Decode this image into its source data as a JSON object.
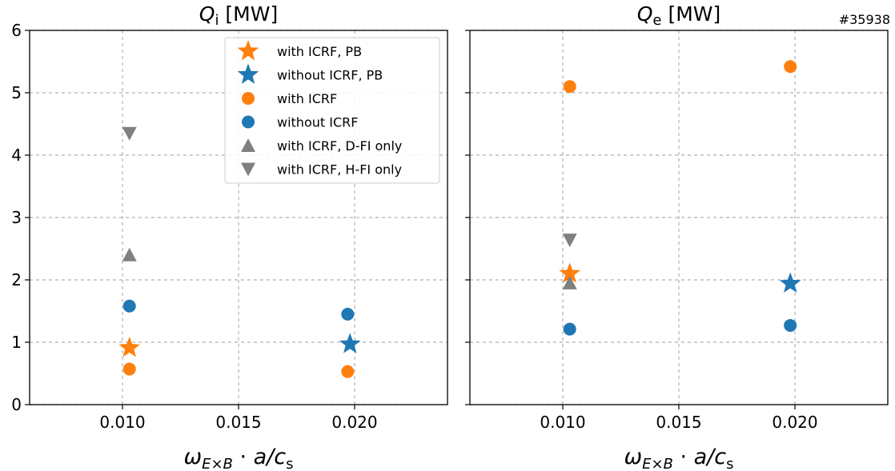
{
  "shot_label": "#35938",
  "x_label": "ωE×B · a/cs",
  "chart_data": [
    {
      "type": "scatter",
      "title": "Qi [MW]",
      "xlabel": "ωE×B · a/cs",
      "ylabel": "",
      "xlim": [
        0.006,
        0.024
      ],
      "ylim": [
        0,
        6
      ],
      "xticks": [
        "0.010",
        "0.015",
        "0.020"
      ],
      "yticks": [
        "0",
        "1",
        "2",
        "3",
        "4",
        "5",
        "6"
      ],
      "grid": true,
      "legend_position": "top-right",
      "series": [
        {
          "name": "with ICRF, PB",
          "marker": "star",
          "color": "#ff7f0e",
          "points": [
            {
              "x": 0.0103,
              "y": 0.91
            }
          ]
        },
        {
          "name": "without ICRF, PB",
          "marker": "star",
          "color": "#1f77b4",
          "points": [
            {
              "x": 0.0198,
              "y": 0.97
            }
          ]
        },
        {
          "name": "with ICRF",
          "marker": "circle",
          "color": "#ff7f0e",
          "points": [
            {
              "x": 0.0103,
              "y": 0.57
            },
            {
              "x": 0.0197,
              "y": 0.53
            }
          ]
        },
        {
          "name": "without ICRF",
          "marker": "circle",
          "color": "#1f77b4",
          "points": [
            {
              "x": 0.0103,
              "y": 1.58
            },
            {
              "x": 0.0197,
              "y": 1.45
            }
          ]
        },
        {
          "name": "with ICRF, D-FI only",
          "marker": "triangle-up",
          "color": "#808080",
          "points": [
            {
              "x": 0.0103,
              "y": 2.4
            }
          ]
        },
        {
          "name": "with ICRF, H-FI only",
          "marker": "triangle-down",
          "color": "#808080",
          "points": [
            {
              "x": 0.0103,
              "y": 4.35
            }
          ]
        }
      ]
    },
    {
      "type": "scatter",
      "title": "Qe [MW]",
      "xlabel": "ωE×B · a/cs",
      "ylabel": "",
      "xlim": [
        0.006,
        0.024
      ],
      "ylim": [
        0,
        6
      ],
      "xticks": [
        "0.010",
        "0.015",
        "0.020"
      ],
      "yticks": [
        "0",
        "1",
        "2",
        "3",
        "4",
        "5",
        "6"
      ],
      "grid": true,
      "legend_position": "none",
      "series": [
        {
          "name": "with ICRF, PB",
          "marker": "star",
          "color": "#ff7f0e",
          "points": [
            {
              "x": 0.0103,
              "y": 2.1
            }
          ]
        },
        {
          "name": "without ICRF, PB",
          "marker": "star",
          "color": "#1f77b4",
          "points": [
            {
              "x": 0.0198,
              "y": 1.94
            }
          ]
        },
        {
          "name": "with ICRF",
          "marker": "circle",
          "color": "#ff7f0e",
          "points": [
            {
              "x": 0.0103,
              "y": 5.1
            },
            {
              "x": 0.0198,
              "y": 5.42
            }
          ]
        },
        {
          "name": "without ICRF",
          "marker": "circle",
          "color": "#1f77b4",
          "points": [
            {
              "x": 0.0103,
              "y": 1.21
            },
            {
              "x": 0.0198,
              "y": 1.27
            }
          ]
        },
        {
          "name": "with ICRF, D-FI only",
          "marker": "triangle-up",
          "color": "#808080",
          "points": [
            {
              "x": 0.0103,
              "y": 1.95
            }
          ]
        },
        {
          "name": "with ICRF, H-FI only",
          "marker": "triangle-down",
          "color": "#808080",
          "points": [
            {
              "x": 0.0103,
              "y": 2.64
            }
          ]
        }
      ]
    }
  ]
}
